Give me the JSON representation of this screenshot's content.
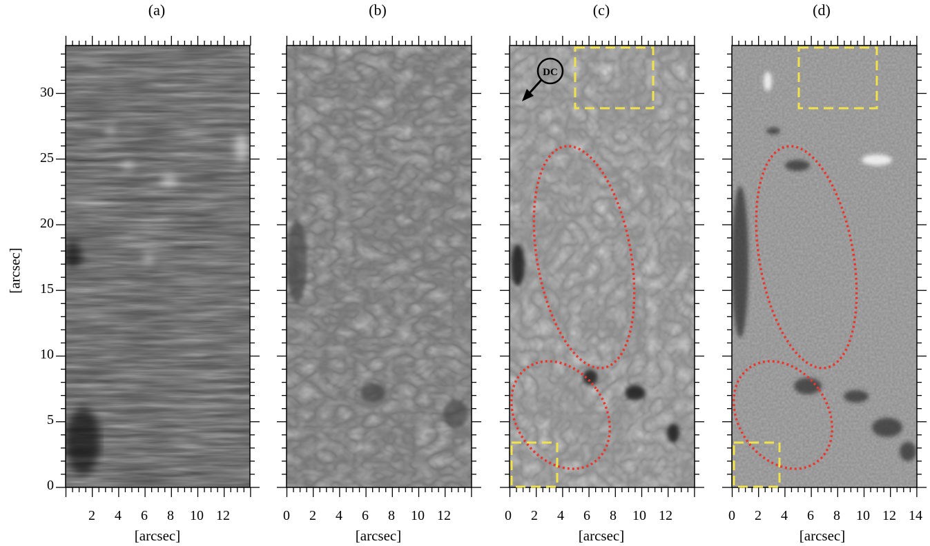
{
  "figure": {
    "panels": [
      {
        "id": "a",
        "title": "(a)",
        "xtick_labels": [
          "2",
          "4",
          "6",
          "8",
          "10",
          "12"
        ],
        "xlabel": "[arcsec]"
      },
      {
        "id": "b",
        "title": "(b)",
        "xtick_labels": [
          "0",
          "2",
          "4",
          "6",
          "8",
          "10",
          "12"
        ],
        "xlabel": "[arcsec]"
      },
      {
        "id": "c",
        "title": "(c)",
        "xtick_labels": [
          "0",
          "2",
          "4",
          "6",
          "8",
          "10",
          "12"
        ],
        "xlabel": "[arcsec]",
        "marker_label": "DC"
      },
      {
        "id": "d",
        "title": "(d)",
        "xtick_labels": [
          "0",
          "2",
          "4",
          "6",
          "8",
          "10",
          "12",
          "14"
        ],
        "xlabel": "[arcsec]"
      }
    ],
    "ylabel": "[arcsec]",
    "ytick_labels": [
      "0",
      "5",
      "10",
      "15",
      "20",
      "25",
      "30"
    ],
    "colors": {
      "box_outline": "#f2e24a",
      "ellipse_outline": "#e8382e",
      "axis": "#000000"
    }
  }
}
